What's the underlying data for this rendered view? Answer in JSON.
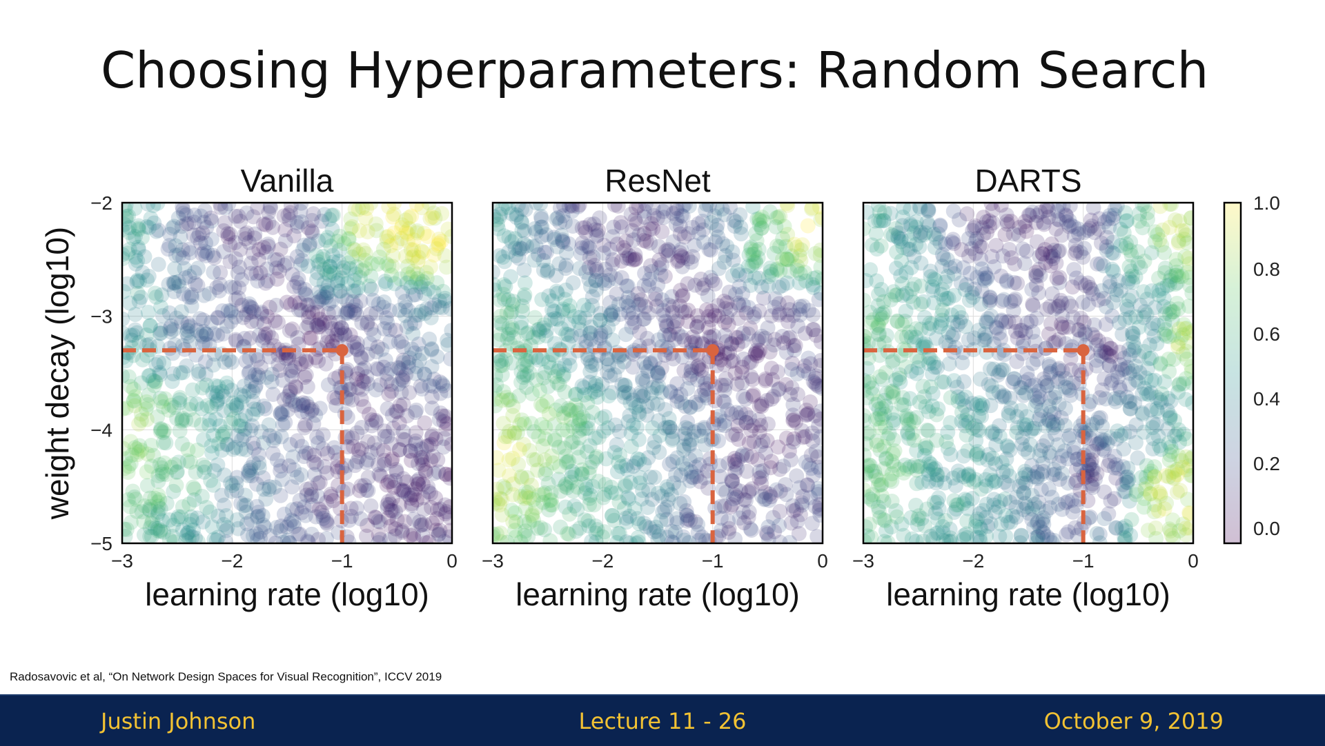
{
  "slide": {
    "title": "Choosing Hyperparameters: Random Search",
    "citation": "Radosavovic et al, “On Network Design Spaces for Visual Recognition”, ICCV 2019"
  },
  "footer": {
    "author": "Justin Johnson",
    "lecture": "Lecture 11 - 26",
    "date": "October 9, 2019",
    "background_color": "#0a2350",
    "text_color": "#f2c233"
  },
  "chart_data": [
    {
      "type": "scatter",
      "title": "Vanilla",
      "xlabel": "learning rate (log10)",
      "ylabel": "weight decay (log10)",
      "xlim": [
        -3,
        0
      ],
      "ylim": [
        -5,
        -2
      ],
      "xticks": [
        "−3",
        "−2",
        "−1",
        "0"
      ],
      "yticks": [
        "−2",
        "−3",
        "−4",
        "−5"
      ],
      "colormap": "viridis_r",
      "marker_alpha": 0.2,
      "grid": true,
      "highlight_point": {
        "x": -1,
        "y": -3.3,
        "color": "#d9643f",
        "style": "dashed guide lines to axes"
      },
      "color_field_note_series": "low error band runs diagonally",
      "points": {
        "x": [
          -2.9,
          -2.6,
          -2.3,
          -2.0,
          -1.7,
          -1.4,
          -1.1,
          -0.8,
          -0.5,
          -0.2,
          -2.8,
          -2.4,
          -2.0,
          -1.6,
          -1.2,
          -0.9,
          -0.6,
          -0.3,
          -2.9,
          -2.5,
          -2.1,
          -1.7,
          -1.3,
          -1.0,
          -0.7,
          -0.4,
          -0.1
        ],
        "y": [
          -2.2,
          -2.3,
          -2.2,
          -2.3,
          -2.4,
          -2.2,
          -2.5,
          -2.3,
          -2.2,
          -2.4,
          -3.0,
          -3.1,
          -2.9,
          -3.0,
          -3.2,
          -3.4,
          -3.1,
          -3.0,
          -4.0,
          -4.1,
          -3.9,
          -4.2,
          -4.0,
          -4.3,
          -4.1,
          -4.4,
          -4.6
        ],
        "error": [
          0.55,
          0.3,
          0.2,
          0.15,
          0.12,
          0.15,
          0.5,
          0.9,
          0.95,
          0.95,
          0.5,
          0.3,
          0.2,
          0.12,
          0.1,
          0.15,
          0.2,
          0.35,
          0.8,
          0.65,
          0.5,
          0.3,
          0.2,
          0.12,
          0.1,
          0.1,
          0.1
        ]
      }
    },
    {
      "type": "scatter",
      "title": "ResNet",
      "xlabel": "learning rate (log10)",
      "ylabel": "",
      "xlim": [
        -3,
        0
      ],
      "ylim": [
        -5,
        -2
      ],
      "xticks": [
        "−3",
        "−2",
        "−1",
        "0"
      ],
      "colormap": "viridis_r",
      "marker_alpha": 0.2,
      "grid": true,
      "highlight_point": {
        "x": -1,
        "y": -3.3,
        "color": "#d9643f",
        "style": "dashed guide lines to axes"
      },
      "points": {
        "x": [
          -2.9,
          -2.5,
          -2.1,
          -1.7,
          -1.3,
          -0.9,
          -0.5,
          -0.2,
          -2.8,
          -2.4,
          -2.0,
          -1.6,
          -1.2,
          -0.8,
          -0.4,
          -2.9,
          -2.5,
          -2.1,
          -1.7,
          -1.3,
          -0.9,
          -0.5,
          -0.1
        ],
        "y": [
          -2.2,
          -2.3,
          -2.2,
          -2.3,
          -2.4,
          -2.2,
          -2.3,
          -2.2,
          -3.1,
          -3.0,
          -3.2,
          -3.1,
          -3.0,
          -3.3,
          -3.1,
          -4.2,
          -4.0,
          -4.3,
          -4.1,
          -4.2,
          -4.4,
          -4.1,
          -4.5
        ],
        "error": [
          0.5,
          0.3,
          0.15,
          0.12,
          0.15,
          0.3,
          0.7,
          0.95,
          0.6,
          0.5,
          0.35,
          0.2,
          0.12,
          0.1,
          0.15,
          0.9,
          0.75,
          0.6,
          0.45,
          0.35,
          0.15,
          0.1,
          0.2
        ]
      }
    },
    {
      "type": "scatter",
      "title": "DARTS",
      "xlabel": "learning rate (log10)",
      "ylabel": "",
      "xlim": [
        -3,
        0
      ],
      "ylim": [
        -5,
        -2
      ],
      "xticks": [
        "−3",
        "−2",
        "−1",
        "0"
      ],
      "colormap": "viridis_r",
      "marker_alpha": 0.2,
      "grid": true,
      "highlight_point": {
        "x": -1,
        "y": -3.3,
        "color": "#d9643f",
        "style": "dashed guide lines to axes"
      },
      "colorbar": {
        "ticks": [
          "1.0",
          "0.8",
          "0.6",
          "0.4",
          "0.2",
          "0.0"
        ],
        "range": [
          0,
          1
        ]
      },
      "points": {
        "x": [
          -2.9,
          -2.5,
          -2.1,
          -1.7,
          -1.3,
          -0.9,
          -0.5,
          -0.2,
          -2.8,
          -2.4,
          -2.0,
          -1.6,
          -1.2,
          -0.8,
          -0.4,
          -0.1,
          -2.9,
          -2.5,
          -2.1,
          -1.7,
          -1.3,
          -0.9,
          -0.5,
          -0.2
        ],
        "y": [
          -2.2,
          -2.3,
          -2.2,
          -2.3,
          -2.4,
          -2.2,
          -2.3,
          -2.2,
          -3.1,
          -3.0,
          -3.2,
          -3.1,
          -3.0,
          -3.3,
          -3.1,
          -3.2,
          -4.2,
          -4.0,
          -4.3,
          -4.1,
          -4.2,
          -4.4,
          -4.1,
          -4.5
        ],
        "error": [
          0.55,
          0.45,
          0.15,
          0.1,
          0.12,
          0.2,
          0.6,
          0.9,
          0.65,
          0.55,
          0.35,
          0.2,
          0.12,
          0.15,
          0.45,
          0.85,
          0.7,
          0.6,
          0.5,
          0.45,
          0.3,
          0.15,
          0.4,
          0.9
        ]
      }
    }
  ]
}
